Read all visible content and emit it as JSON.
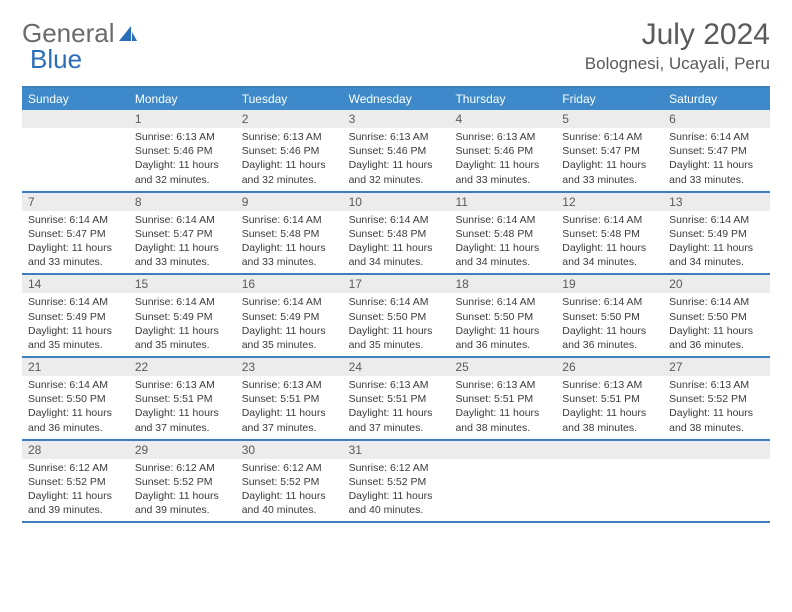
{
  "logo": {
    "text1": "General",
    "text2": "Blue"
  },
  "title": "July 2024",
  "location": "Bolognesi, Ucayali, Peru",
  "colors": {
    "header_bg": "#3d89c9",
    "header_text": "#ffffff",
    "border": "#3d7fbf",
    "daynum_bg": "#ececec",
    "text": "#3b3b3b",
    "title_text": "#5a5a5a",
    "logo_gray": "#6b6b6b",
    "logo_blue": "#2a6db8"
  },
  "weekdays": [
    "Sunday",
    "Monday",
    "Tuesday",
    "Wednesday",
    "Thursday",
    "Friday",
    "Saturday"
  ],
  "weeks": [
    [
      {
        "n": "",
        "sr": "",
        "ss": "",
        "dl": ""
      },
      {
        "n": "1",
        "sr": "6:13 AM",
        "ss": "5:46 PM",
        "dl": "11 hours and 32 minutes."
      },
      {
        "n": "2",
        "sr": "6:13 AM",
        "ss": "5:46 PM",
        "dl": "11 hours and 32 minutes."
      },
      {
        "n": "3",
        "sr": "6:13 AM",
        "ss": "5:46 PM",
        "dl": "11 hours and 32 minutes."
      },
      {
        "n": "4",
        "sr": "6:13 AM",
        "ss": "5:46 PM",
        "dl": "11 hours and 33 minutes."
      },
      {
        "n": "5",
        "sr": "6:14 AM",
        "ss": "5:47 PM",
        "dl": "11 hours and 33 minutes."
      },
      {
        "n": "6",
        "sr": "6:14 AM",
        "ss": "5:47 PM",
        "dl": "11 hours and 33 minutes."
      }
    ],
    [
      {
        "n": "7",
        "sr": "6:14 AM",
        "ss": "5:47 PM",
        "dl": "11 hours and 33 minutes."
      },
      {
        "n": "8",
        "sr": "6:14 AM",
        "ss": "5:47 PM",
        "dl": "11 hours and 33 minutes."
      },
      {
        "n": "9",
        "sr": "6:14 AM",
        "ss": "5:48 PM",
        "dl": "11 hours and 33 minutes."
      },
      {
        "n": "10",
        "sr": "6:14 AM",
        "ss": "5:48 PM",
        "dl": "11 hours and 34 minutes."
      },
      {
        "n": "11",
        "sr": "6:14 AM",
        "ss": "5:48 PM",
        "dl": "11 hours and 34 minutes."
      },
      {
        "n": "12",
        "sr": "6:14 AM",
        "ss": "5:48 PM",
        "dl": "11 hours and 34 minutes."
      },
      {
        "n": "13",
        "sr": "6:14 AM",
        "ss": "5:49 PM",
        "dl": "11 hours and 34 minutes."
      }
    ],
    [
      {
        "n": "14",
        "sr": "6:14 AM",
        "ss": "5:49 PM",
        "dl": "11 hours and 35 minutes."
      },
      {
        "n": "15",
        "sr": "6:14 AM",
        "ss": "5:49 PM",
        "dl": "11 hours and 35 minutes."
      },
      {
        "n": "16",
        "sr": "6:14 AM",
        "ss": "5:49 PM",
        "dl": "11 hours and 35 minutes."
      },
      {
        "n": "17",
        "sr": "6:14 AM",
        "ss": "5:50 PM",
        "dl": "11 hours and 35 minutes."
      },
      {
        "n": "18",
        "sr": "6:14 AM",
        "ss": "5:50 PM",
        "dl": "11 hours and 36 minutes."
      },
      {
        "n": "19",
        "sr": "6:14 AM",
        "ss": "5:50 PM",
        "dl": "11 hours and 36 minutes."
      },
      {
        "n": "20",
        "sr": "6:14 AM",
        "ss": "5:50 PM",
        "dl": "11 hours and 36 minutes."
      }
    ],
    [
      {
        "n": "21",
        "sr": "6:14 AM",
        "ss": "5:50 PM",
        "dl": "11 hours and 36 minutes."
      },
      {
        "n": "22",
        "sr": "6:13 AM",
        "ss": "5:51 PM",
        "dl": "11 hours and 37 minutes."
      },
      {
        "n": "23",
        "sr": "6:13 AM",
        "ss": "5:51 PM",
        "dl": "11 hours and 37 minutes."
      },
      {
        "n": "24",
        "sr": "6:13 AM",
        "ss": "5:51 PM",
        "dl": "11 hours and 37 minutes."
      },
      {
        "n": "25",
        "sr": "6:13 AM",
        "ss": "5:51 PM",
        "dl": "11 hours and 38 minutes."
      },
      {
        "n": "26",
        "sr": "6:13 AM",
        "ss": "5:51 PM",
        "dl": "11 hours and 38 minutes."
      },
      {
        "n": "27",
        "sr": "6:13 AM",
        "ss": "5:52 PM",
        "dl": "11 hours and 38 minutes."
      }
    ],
    [
      {
        "n": "28",
        "sr": "6:12 AM",
        "ss": "5:52 PM",
        "dl": "11 hours and 39 minutes."
      },
      {
        "n": "29",
        "sr": "6:12 AM",
        "ss": "5:52 PM",
        "dl": "11 hours and 39 minutes."
      },
      {
        "n": "30",
        "sr": "6:12 AM",
        "ss": "5:52 PM",
        "dl": "11 hours and 40 minutes."
      },
      {
        "n": "31",
        "sr": "6:12 AM",
        "ss": "5:52 PM",
        "dl": "11 hours and 40 minutes."
      },
      {
        "n": "",
        "sr": "",
        "ss": "",
        "dl": ""
      },
      {
        "n": "",
        "sr": "",
        "ss": "",
        "dl": ""
      },
      {
        "n": "",
        "sr": "",
        "ss": "",
        "dl": ""
      }
    ]
  ],
  "labels": {
    "sunrise": "Sunrise:",
    "sunset": "Sunset:",
    "daylight": "Daylight:"
  }
}
